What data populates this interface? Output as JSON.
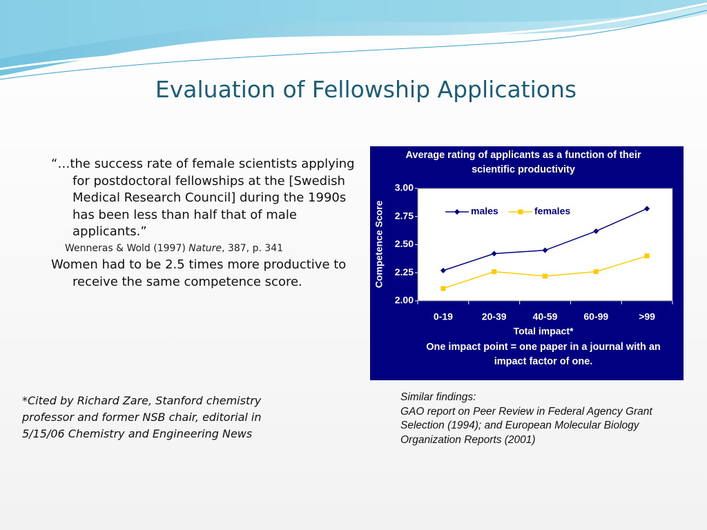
{
  "title": "Evaluation of Fellowship Applications",
  "quote": "“…the success rate of female scientists applying for postdoctoral fellowships at the [Swedish Medical Research Council] during the 1990s has been less than half that of male applicants.”",
  "citation": {
    "authors": "Wenneras & Wold (1997) ",
    "journal": "Nature",
    "details": ", 387, p. 341"
  },
  "conclusion": "Women had to be 2.5 times more productive to receive the same competence score.",
  "footnote": "*Cited by Richard Zare, Stanford chemistry professor and former NSB chair, editorial in 5/15/06 Chemistry and Engineering News",
  "similar": {
    "heading": "Similar findings:",
    "text": "GAO report on Peer Review in Federal Agency Grant Selection (1994); and European Molecular Biology Organization Reports (2001)"
  },
  "chart_data": {
    "type": "line",
    "title": "Average rating of applicants as a function of their scientific productivity",
    "y_label": "Competence Score",
    "x_label": "Total impact*",
    "note": "One impact point = one paper in a journal with an impact factor of one.",
    "categories": [
      "0-19",
      "20-39",
      "40-59",
      "60-99",
      ">99"
    ],
    "series": [
      {
        "name": "males",
        "color": "#000080",
        "marker": "diamond",
        "values": [
          2.27,
          2.42,
          2.45,
          2.62,
          2.82
        ]
      },
      {
        "name": "females",
        "color": "#ffcc00",
        "marker": "square",
        "values": [
          2.11,
          2.26,
          2.22,
          2.26,
          2.4
        ]
      }
    ],
    "ylim": [
      2,
      3
    ],
    "yticks": [
      {
        "value": 2,
        "label": "2.00"
      },
      {
        "value": 2.25,
        "label": "2.25"
      },
      {
        "value": 2.5,
        "label": "2.50"
      },
      {
        "value": 2.75,
        "label": "2.75"
      },
      {
        "value": 3,
        "label": "3.00"
      }
    ],
    "legend": "top-left"
  }
}
